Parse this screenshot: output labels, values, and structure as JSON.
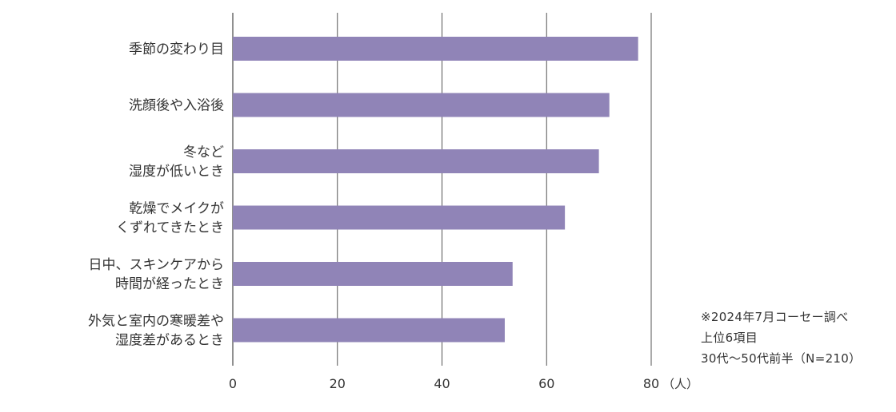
{
  "chart_data": {
    "type": "bar",
    "orientation": "horizontal",
    "categories": [
      [
        "季節の変わり目"
      ],
      [
        "洗顔後や入浴後"
      ],
      [
        "冬など",
        "湿度が低いとき"
      ],
      [
        "乾燥でメイクが",
        "くずれてきたとき"
      ],
      [
        "日中、スキンケアから",
        "時間が経ったとき"
      ],
      [
        "外気と室内の寒暖差や",
        "湿度差があるとき"
      ]
    ],
    "values": [
      77.5,
      72,
      70,
      63.5,
      53.5,
      52
    ],
    "xlim": [
      0,
      80
    ],
    "x_ticks": [
      "0",
      "20",
      "40",
      "60",
      "80"
    ],
    "x_unit": "（人）",
    "grid": true,
    "bar_color": "#9084b7",
    "axis_color": "#555555"
  },
  "notes": {
    "line1": "※2024年7月コーセー調べ",
    "line2": "上位6項目",
    "line3": "30代〜50代前半（N=210）"
  }
}
